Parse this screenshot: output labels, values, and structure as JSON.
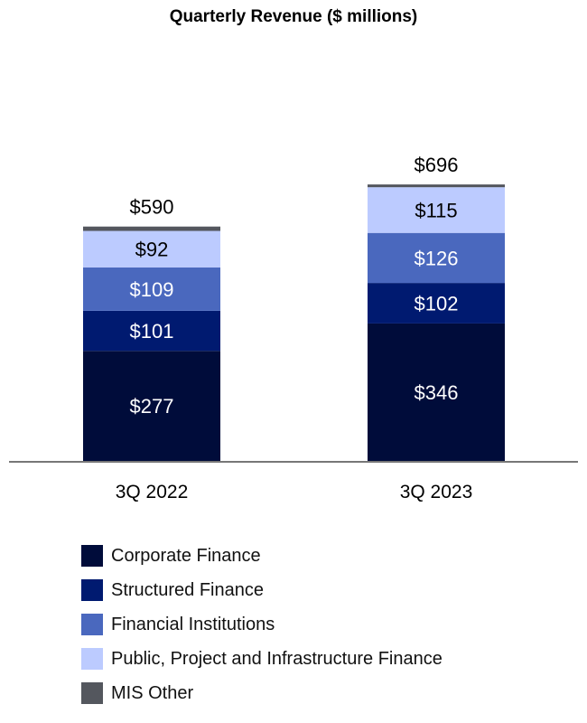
{
  "chart_data": {
    "type": "bar",
    "stacked": true,
    "title": "Quarterly Revenue ($ millions)",
    "xlabel": "",
    "ylabel": "",
    "ylim": [
      0,
      760
    ],
    "grid": false,
    "legend_placement": "bottom",
    "categories": [
      "3Q 2022",
      "3Q 2023"
    ],
    "totals": [
      590,
      696
    ],
    "total_labels": [
      "$590",
      "$696"
    ],
    "series": [
      {
        "name": "Corporate Finance",
        "color": "#000C3A",
        "values": [
          277,
          346
        ],
        "labels": [
          "$277",
          "$346"
        ]
      },
      {
        "name": "Structured Finance",
        "color": "#001A70",
        "values": [
          101,
          102
        ],
        "labels": [
          "$101",
          "$102"
        ]
      },
      {
        "name": "Financial Institutions",
        "color": "#4A68BE",
        "values": [
          109,
          126
        ],
        "labels": [
          "$109",
          "$126"
        ]
      },
      {
        "name": "Public, Project and Infrastructure Finance",
        "color": "#BCCBFF",
        "values": [
          92,
          115
        ],
        "labels": [
          "$92",
          "$115"
        ]
      },
      {
        "name": "MIS Other",
        "color": "#54575E",
        "values": [
          11,
          7
        ],
        "labels": [
          "",
          ""
        ]
      }
    ]
  }
}
